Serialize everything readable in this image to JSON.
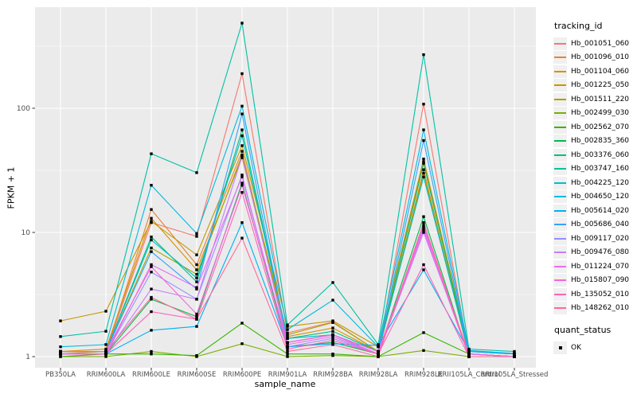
{
  "legend": {
    "tracking_title": "tracking_id",
    "quant_title": "quant_status",
    "quant_item": "OK"
  },
  "panel": {
    "bg": "#EBEBEB",
    "grid_major": "#FFFFFF",
    "grid_minor": "#FFFFFF",
    "tick_color": "#333333",
    "tick_label_color": "#4D4D4D",
    "point_color": "#000000"
  },
  "chart_data": {
    "type": "line",
    "title": "",
    "xlabel": "sample_name",
    "ylabel": "FPKM + 1",
    "y_scale": "log10",
    "y_ticks": [
      1,
      10,
      100
    ],
    "y_minor_ticks": [
      3.162,
      31.62,
      316.2
    ],
    "ylim": [
      1,
      650
    ],
    "grid": true,
    "legend_position": "right",
    "categories": [
      "PB350LA",
      "RRIM600LA",
      "RRIM600LE",
      "RRIM600SE",
      "RRIM600PE",
      "RRIM901LA",
      "RRIM928BA",
      "RRIM928LA",
      "RRIM928LE",
      "RRII105LA_Control",
      "RRII105LA_Stressed"
    ],
    "series": [
      {
        "name": "Hb_001051_060",
        "color": "#F8766D",
        "values": [
          1.1,
          1.1,
          12.0,
          9.3,
          190,
          1.55,
          1.9,
          1.1,
          108,
          1.05,
          1.0
        ]
      },
      {
        "name": "Hb_001096_010",
        "color": "#EA8331",
        "values": [
          1.05,
          1.1,
          15.3,
          5.5,
          45,
          1.3,
          1.5,
          1.05,
          32,
          1.0,
          1.0
        ]
      },
      {
        "name": "Hb_001104_060",
        "color": "#D89000",
        "values": [
          1.1,
          1.15,
          13.0,
          5.0,
          40,
          1.45,
          1.7,
          1.1,
          37,
          1.05,
          1.0
        ]
      },
      {
        "name": "Hb_001225_050",
        "color": "#C09B00",
        "values": [
          1.94,
          2.32,
          12.3,
          6.6,
          50,
          1.75,
          1.94,
          1.2,
          39,
          1.1,
          1.05
        ]
      },
      {
        "name": "Hb_001511_220",
        "color": "#A3A500",
        "values": [
          1.1,
          1.1,
          7.5,
          4.6,
          42,
          1.5,
          1.88,
          1.1,
          30,
          1.05,
          1.0
        ]
      },
      {
        "name": "Hb_002499_030",
        "color": "#7CAE00",
        "values": [
          1.0,
          1.0,
          1.1,
          1.0,
          1.27,
          1.0,
          1.02,
          1.0,
          1.12,
          1.0,
          1.0
        ]
      },
      {
        "name": "Hb_002562_070",
        "color": "#39B600",
        "values": [
          1.0,
          1.05,
          1.05,
          1.02,
          1.86,
          1.05,
          1.05,
          1.0,
          1.56,
          1.05,
          1.0
        ]
      },
      {
        "name": "Hb_002835_360",
        "color": "#00BB4E",
        "values": [
          1.05,
          1.05,
          2.9,
          2.1,
          25,
          1.2,
          1.3,
          1.05,
          13.4,
          1.0,
          1.0
        ]
      },
      {
        "name": "Hb_003376_060",
        "color": "#00BF7D",
        "values": [
          1.1,
          1.1,
          9.2,
          4.0,
          67,
          1.4,
          1.6,
          1.1,
          36,
          1.05,
          1.0
        ]
      },
      {
        "name": "Hb_003747_160",
        "color": "#00C1A3",
        "values": [
          1.45,
          1.6,
          43,
          30.3,
          485,
          1.8,
          3.95,
          1.25,
          270,
          1.15,
          1.1
        ]
      },
      {
        "name": "Hb_004225_120",
        "color": "#00BFC4",
        "values": [
          1.1,
          1.1,
          8.7,
          4.3,
          60,
          1.4,
          1.5,
          1.1,
          28,
          1.05,
          1.0
        ]
      },
      {
        "name": "Hb_004650_120",
        "color": "#00BAE0",
        "values": [
          1.2,
          1.25,
          24,
          9.8,
          104,
          1.65,
          2.85,
          1.2,
          67,
          1.12,
          1.06
        ]
      },
      {
        "name": "Hb_005614_020",
        "color": "#00B0F6",
        "values": [
          1.05,
          1.05,
          1.63,
          1.75,
          12,
          1.2,
          1.27,
          1.23,
          5.0,
          1.1,
          1.05
        ]
      },
      {
        "name": "Hb_005686_040",
        "color": "#35A2FF",
        "values": [
          1.1,
          1.1,
          7.0,
          3.5,
          90,
          1.3,
          1.5,
          1.1,
          55,
          1.05,
          1.0
        ]
      },
      {
        "name": "Hb_009117_020",
        "color": "#9590FF",
        "values": [
          1.05,
          1.05,
          4.8,
          2.9,
          29,
          1.2,
          1.4,
          1.05,
          11.4,
          1.0,
          1.0
        ]
      },
      {
        "name": "Hb_009476_080",
        "color": "#C77CFF",
        "values": [
          1.05,
          1.05,
          3.5,
          2.9,
          41,
          1.3,
          1.5,
          1.05,
          10.0,
          1.05,
          1.0
        ]
      },
      {
        "name": "Hb_011224_070",
        "color": "#E76BF3",
        "values": [
          1.05,
          1.05,
          5.5,
          3.6,
          28,
          1.25,
          1.45,
          1.05,
          10.5,
          1.0,
          1.0
        ]
      },
      {
        "name": "Hb_015807_090",
        "color": "#FA62DB",
        "values": [
          1.1,
          1.1,
          5.3,
          2.2,
          24,
          1.3,
          1.5,
          1.1,
          11.0,
          1.05,
          1.0
        ]
      },
      {
        "name": "Hb_135052_010",
        "color": "#FF62BC",
        "values": [
          1.05,
          1.05,
          2.3,
          2.0,
          21,
          1.15,
          1.35,
          1.05,
          5.5,
          1.0,
          1.0
        ]
      },
      {
        "name": "Hb_148262_010",
        "color": "#FF6A98",
        "values": [
          1.1,
          1.1,
          3.0,
          2.0,
          9.0,
          1.1,
          1.25,
          1.0,
          12.0,
          1.0,
          1.0
        ]
      }
    ]
  }
}
